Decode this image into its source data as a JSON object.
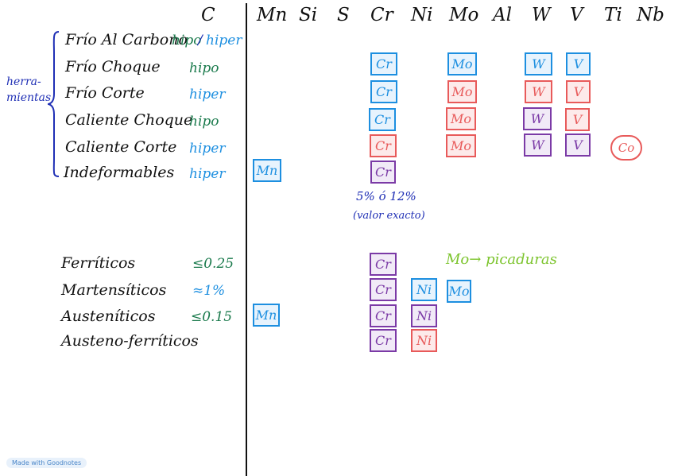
{
  "columns": [
    "C",
    "Mn",
    "Si",
    "S",
    "Cr",
    "Ni",
    "Mo",
    "Al",
    "W",
    "V",
    "Ti",
    "Nb"
  ],
  "group_label_line1": "herra-",
  "group_label_line2": "mientas",
  "tool_rows": [
    {
      "label": "Frío Al Carbono",
      "c_part1": "hipo",
      "c_sep": "/",
      "c_part2": "hiper"
    },
    {
      "label": "Frío Choque",
      "c": "hipo"
    },
    {
      "label": "Frío Corte",
      "c": "hiper"
    },
    {
      "label": "Caliente Choque",
      "c": "hipo"
    },
    {
      "label": "Caliente Corte",
      "c": "hiper"
    },
    {
      "label": "Indeformables",
      "c": "hiper"
    }
  ],
  "steel_rows": [
    {
      "label": "Ferríticos",
      "c": "≤0.25"
    },
    {
      "label": "Martensíticos",
      "c": "≈1%"
    },
    {
      "label": "Austeníticos",
      "c": "≤0.15"
    },
    {
      "label": "Austeno-ferríticos",
      "c": ""
    }
  ],
  "cr_note_line1": "5% ó 12%",
  "cr_note_line2": "(valor exacto)",
  "mo_note": "Mo→ picaduras",
  "co_label": "Co",
  "chip_labels": {
    "cr": "Cr",
    "mo": "Mo",
    "w": "W",
    "v": "V",
    "mn": "Mn",
    "ni": "Ni"
  },
  "colors": {
    "blue": "#1d8fe0",
    "red": "#e85a5a",
    "purple": "#7b3aa6",
    "green": "#1a7a4c",
    "navy": "#1f2fb5",
    "lightgreen": "#7cc42d"
  },
  "badge": "Made with Goodnotes"
}
